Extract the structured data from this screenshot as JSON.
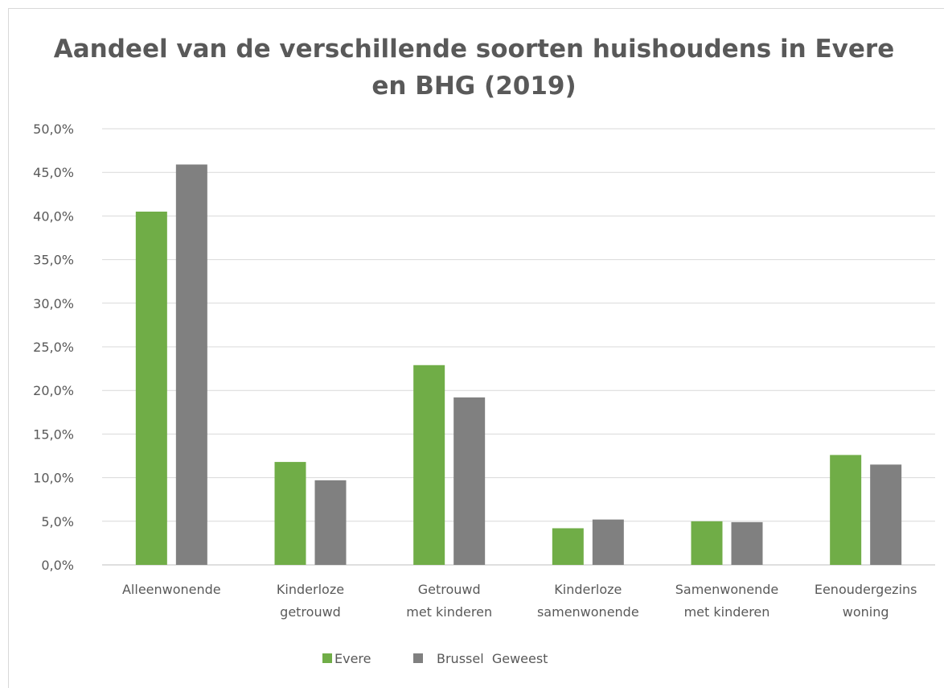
{
  "chart_data": {
    "type": "bar",
    "title_lines": [
      "Aandeel van de verschillende soorten huishoudens in Evere",
      "en BHG (2019)"
    ],
    "categories": [
      [
        "Alleenwonende"
      ],
      [
        "Kinderloze",
        "getrouwd"
      ],
      [
        "Getrouwd",
        "met kinderen"
      ],
      [
        "Kinderloze",
        "samenwonende"
      ],
      [
        "Samenwonende",
        "met kinderen"
      ],
      [
        "Eenoudergezins",
        "woning"
      ]
    ],
    "series": [
      {
        "name": "Evere",
        "color": "#70ad47",
        "values": [
          40.5,
          11.8,
          22.9,
          4.2,
          5.0,
          12.6
        ]
      },
      {
        "name": "Brussel  Geweest",
        "color": "#808080",
        "values": [
          45.9,
          9.7,
          19.2,
          5.2,
          4.9,
          11.5
        ]
      }
    ],
    "ylim": [
      0,
      50
    ],
    "ytick_labels": [
      "0,0%",
      "5,0%",
      "10,0%",
      "15,0%",
      "20,0%",
      "25,0%",
      "30,0%",
      "35,0%",
      "40,0%",
      "45,0%",
      "50,0%"
    ],
    "grid": true,
    "legend_position": "bottom"
  }
}
